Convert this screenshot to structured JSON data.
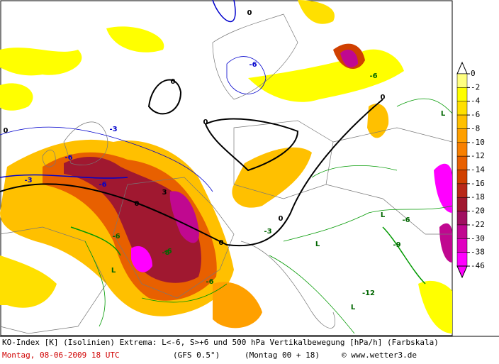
{
  "legend": {
    "labels": [
      0,
      -2,
      -4,
      -6,
      -8,
      -10,
      -12,
      -14,
      -16,
      -18,
      -20,
      -22,
      -30,
      -38,
      -46
    ],
    "colors": [
      "#ffff80",
      "#ffff00",
      "#ffe000",
      "#ffc000",
      "#ffa000",
      "#f88000",
      "#e86000",
      "#d04000",
      "#b82818",
      "#a01830",
      "#a01060",
      "#c00890",
      "#e000c0",
      "#ff00ff"
    ]
  },
  "map": {
    "labels": [
      "0",
      "0",
      "0",
      "0",
      "0",
      "0",
      "0",
      "0",
      "-6",
      "-6",
      "-3",
      "-3",
      "-6",
      "3",
      "-6",
      "-6",
      "L",
      "L",
      "L",
      "L",
      "-6",
      "-6",
      "-12",
      "-9",
      "L",
      "-3",
      "-6",
      "-8"
    ]
  },
  "footer": {
    "line1": "KO-Index [K] (Isolinien) Extrema: L<-6, S>+6 und 500 hPa Vertikalbewegung [hPa/h] (Farbskala)",
    "date": "Montag, 08-06-2009  18 UTC",
    "model": "(GFS 0.5°)",
    "run": "(Montag 00 + 18)",
    "credit": "© www.wetter3.de"
  }
}
